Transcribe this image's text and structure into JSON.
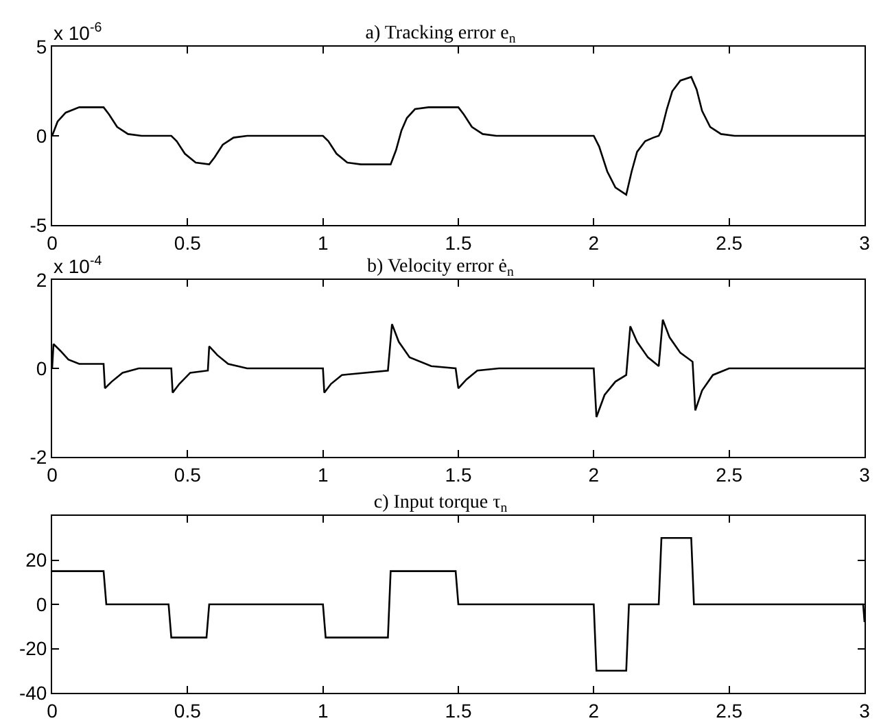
{
  "chart_data": [
    {
      "type": "line",
      "title": "a) Tracking error e$_{n}$",
      "annotations": [
        "x 10$^{-6}$"
      ],
      "xlim": [
        0,
        3
      ],
      "xticks": [
        0,
        0.5,
        1,
        1.5,
        2,
        2.5,
        3
      ],
      "ylim": [
        -5,
        5
      ],
      "yticks": [
        -5,
        0,
        5
      ],
      "grid": false,
      "legend": false,
      "x": [
        0,
        0.02,
        0.05,
        0.1,
        0.15,
        0.19,
        0.21,
        0.24,
        0.28,
        0.33,
        0.44,
        0.46,
        0.49,
        0.53,
        0.58,
        0.6,
        0.63,
        0.67,
        0.72,
        1.0,
        1.02,
        1.05,
        1.09,
        1.14,
        1.25,
        1.27,
        1.29,
        1.31,
        1.34,
        1.39,
        1.5,
        1.52,
        1.55,
        1.59,
        1.64,
        2.0,
        2.02,
        2.05,
        2.08,
        2.12,
        2.14,
        2.16,
        2.19,
        2.22,
        2.24,
        2.25,
        2.27,
        2.29,
        2.32,
        2.36,
        2.38,
        2.4,
        2.43,
        2.47,
        2.52,
        3.0
      ],
      "series": [
        {
          "color": "#000000",
          "values": [
            0,
            0.8,
            1.3,
            1.6,
            1.6,
            1.6,
            1.2,
            0.5,
            0.1,
            0,
            0,
            -0.3,
            -1,
            -1.5,
            -1.6,
            -1.2,
            -0.5,
            -0.1,
            0,
            0,
            -0.3,
            -1,
            -1.5,
            -1.6,
            -1.6,
            -0.8,
            0.3,
            1,
            1.5,
            1.6,
            1.6,
            1.2,
            0.5,
            0.1,
            0,
            0,
            -0.6,
            -2,
            -2.9,
            -3.3,
            -2,
            -0.9,
            -0.3,
            -0.1,
            0,
            0.3,
            1.5,
            2.5,
            3.1,
            3.3,
            2.6,
            1.4,
            0.5,
            0.1,
            0,
            0
          ]
        }
      ]
    },
    {
      "type": "line",
      "title": "b) Velocity error ė$_{n}$",
      "annotations": [
        "x 10$^{-4}$"
      ],
      "xlim": [
        0,
        3
      ],
      "xticks": [
        0,
        0.5,
        1,
        1.5,
        2,
        2.5,
        3
      ],
      "ylim": [
        -2,
        2
      ],
      "yticks": [
        -2,
        0,
        2
      ],
      "grid": false,
      "legend": false,
      "x": [
        0,
        0.005,
        0.03,
        0.06,
        0.1,
        0.19,
        0.195,
        0.22,
        0.26,
        0.32,
        0.44,
        0.445,
        0.47,
        0.51,
        0.575,
        0.58,
        0.61,
        0.65,
        0.72,
        1.0,
        1.005,
        1.03,
        1.07,
        1.24,
        1.255,
        1.28,
        1.32,
        1.4,
        1.49,
        1.5,
        1.53,
        1.57,
        1.65,
        2.0,
        2.01,
        2.04,
        2.08,
        2.12,
        2.135,
        2.16,
        2.2,
        2.24,
        2.255,
        2.28,
        2.32,
        2.365,
        2.375,
        2.4,
        2.44,
        2.5,
        3.0
      ],
      "series": [
        {
          "color": "#000000",
          "values": [
            0,
            0.55,
            0.4,
            0.2,
            0.1,
            0.1,
            -0.45,
            -0.3,
            -0.1,
            0,
            0,
            -0.55,
            -0.35,
            -0.1,
            -0.05,
            0.5,
            0.3,
            0.1,
            0,
            0,
            -0.55,
            -0.35,
            -0.15,
            -0.05,
            1,
            0.6,
            0.25,
            0.05,
            0,
            -0.45,
            -0.25,
            -0.05,
            0,
            0,
            -1.1,
            -0.6,
            -0.3,
            -0.15,
            0.95,
            0.6,
            0.25,
            0.05,
            1.1,
            0.7,
            0.35,
            0.15,
            -0.95,
            -0.5,
            -0.15,
            0,
            0
          ]
        }
      ]
    },
    {
      "type": "line",
      "title": "c) Input torque τ$_{n}$",
      "xlim": [
        0,
        3
      ],
      "xticks": [
        0,
        0.5,
        1,
        1.5,
        2,
        2.5,
        3
      ],
      "ylim": [
        -40,
        40
      ],
      "yticks": [
        -40,
        -20,
        0,
        20
      ],
      "grid": false,
      "legend": false,
      "x": [
        0,
        0.19,
        0.2,
        0.43,
        0.44,
        0.57,
        0.58,
        1.0,
        1.01,
        1.24,
        1.25,
        1.49,
        1.5,
        2.0,
        2.01,
        2.12,
        2.13,
        2.24,
        2.25,
        2.36,
        2.37,
        2.995,
        3.0
      ],
      "series": [
        {
          "color": "#000000",
          "values": [
            15,
            15,
            0,
            0,
            -15,
            -15,
            0,
            0,
            -15,
            -15,
            15,
            15,
            0,
            0,
            -30,
            -30,
            0,
            0,
            30,
            30,
            0,
            0,
            -8
          ]
        }
      ]
    }
  ]
}
